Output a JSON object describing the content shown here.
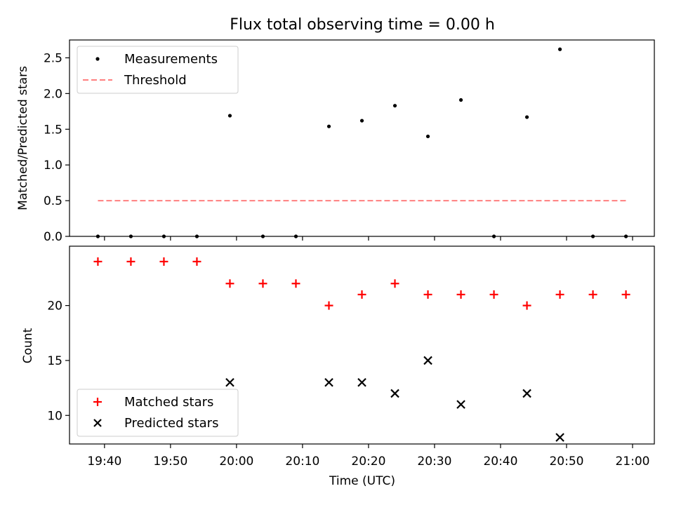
{
  "chart_data": [
    {
      "type": "scatter",
      "title": "Flux total observing time = 0.00 h",
      "ylabel": "Matched/Predicted stars",
      "xlabel": "",
      "ylim": [
        0,
        2.75
      ],
      "y_ticks": [
        0.0,
        0.5,
        1.0,
        1.5,
        2.0,
        2.5
      ],
      "y_tick_labels": [
        "0.0",
        "0.5",
        "1.0",
        "1.5",
        "2.0",
        "2.5"
      ],
      "legend_placement": "top-left",
      "series": [
        {
          "name": "Measurements",
          "kind": "scatter",
          "marker": "dot",
          "color": "#000000",
          "x": [
            "19:39",
            "19:44",
            "19:49",
            "19:54",
            "19:59",
            "20:04",
            "20:09",
            "20:14",
            "20:19",
            "20:24",
            "20:29",
            "20:34",
            "20:39",
            "20:44",
            "20:49",
            "20:54",
            "20:59"
          ],
          "values": [
            0,
            0,
            0,
            0,
            1.69,
            0,
            0,
            1.54,
            1.62,
            1.83,
            1.4,
            1.91,
            0,
            1.67,
            2.62,
            0,
            0
          ]
        },
        {
          "name": "Threshold",
          "kind": "line",
          "style": "dashed",
          "color": "#ff7f7f",
          "x": [
            "19:39",
            "20:59"
          ],
          "values": [
            0.5,
            0.5
          ]
        }
      ]
    },
    {
      "type": "scatter",
      "title": "",
      "ylabel": "Count",
      "xlabel": "Time (UTC)",
      "ylim": [
        7.4,
        25.4
      ],
      "y_ticks": [
        10,
        15,
        20
      ],
      "y_tick_labels": [
        "10",
        "15",
        "20"
      ],
      "x_ticks": [
        "19:40",
        "19:50",
        "20:00",
        "20:10",
        "20:20",
        "20:30",
        "20:40",
        "20:50",
        "21:00"
      ],
      "legend_placement": "bottom-left",
      "series": [
        {
          "name": "Matched stars",
          "marker": "plus",
          "color": "#ff0000",
          "x": [
            "19:39",
            "19:44",
            "19:49",
            "19:54",
            "19:59",
            "20:04",
            "20:09",
            "20:14",
            "20:19",
            "20:24",
            "20:29",
            "20:34",
            "20:39",
            "20:44",
            "20:49",
            "20:54",
            "20:59"
          ],
          "values": [
            24,
            24,
            24,
            24,
            22,
            22,
            22,
            20,
            21,
            22,
            21,
            21,
            21,
            20,
            21,
            21,
            21
          ]
        },
        {
          "name": "Predicted stars",
          "marker": "x",
          "color": "#000000",
          "x": [
            "19:59",
            "20:14",
            "20:19",
            "20:24",
            "20:29",
            "20:34",
            "20:44",
            "20:49"
          ],
          "values": [
            13,
            13,
            13,
            12,
            15,
            11,
            12,
            8
          ]
        }
      ]
    }
  ]
}
